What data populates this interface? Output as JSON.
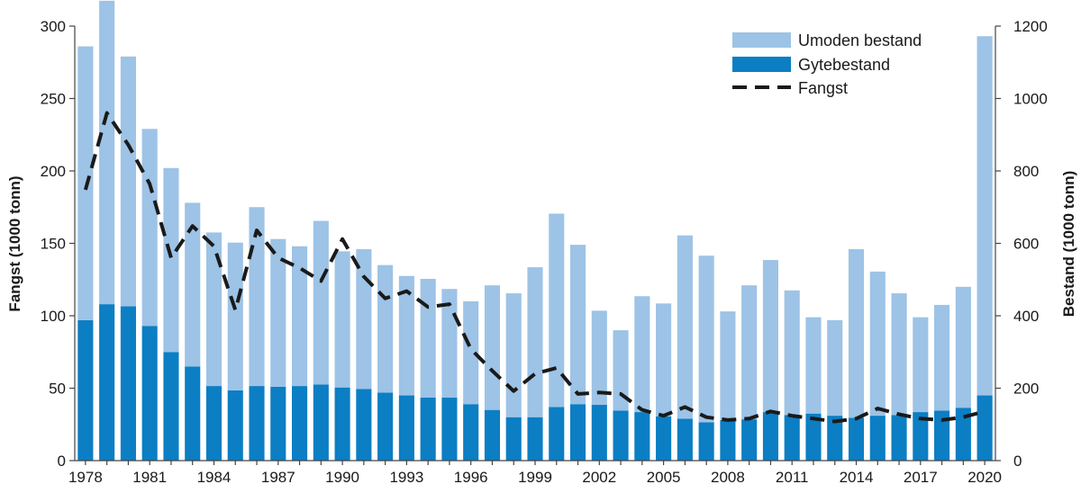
{
  "colors": {
    "umoden": "#9dc3e6",
    "gyte": "#0b7ec4",
    "fangst": "#1a1a1a",
    "axis": "#444444"
  },
  "chart_data": {
    "type": "bar",
    "stacked": true,
    "years": [
      1978,
      1979,
      1980,
      1981,
      1982,
      1983,
      1984,
      1985,
      1986,
      1987,
      1988,
      1989,
      1990,
      1991,
      1992,
      1993,
      1994,
      1995,
      1996,
      1997,
      1998,
      1999,
      2000,
      2001,
      2002,
      2003,
      2004,
      2005,
      2006,
      2007,
      2008,
      2009,
      2010,
      2011,
      2012,
      2013,
      2014,
      2015,
      2016,
      2017,
      2018,
      2019,
      2020
    ],
    "x_tick_labels": [
      "1978",
      "1981",
      "1984",
      "1987",
      "1990",
      "1993",
      "1996",
      "1999",
      "2002",
      "2005",
      "2008",
      "2011",
      "2014",
      "2017",
      "2020"
    ],
    "series": [
      {
        "name": "Gytebestand",
        "axis": "right",
        "values": [
          388,
          432,
          426,
          372,
          300,
          260,
          206,
          194,
          206,
          204,
          206,
          210,
          202,
          198,
          188,
          180,
          174,
          174,
          156,
          140,
          120,
          120,
          148,
          156,
          154,
          138,
          134,
          122,
          116,
          106,
          112,
          114,
          134,
          126,
          130,
          124,
          118,
          124,
          126,
          134,
          138,
          146,
          180
        ]
      },
      {
        "name": "Umoden bestand",
        "axis": "right",
        "values": [
          756,
          838,
          690,
          544,
          508,
          452,
          424,
          408,
          494,
          408,
          386,
          452,
          376,
          386,
          352,
          330,
          328,
          300,
          284,
          344,
          342,
          414,
          534,
          440,
          260,
          222,
          320,
          312,
          506,
          460,
          300,
          370,
          420,
          344,
          266,
          264,
          466,
          398,
          336,
          262,
          292,
          334,
          992
        ]
      },
      {
        "name": "Fangst",
        "axis": "left",
        "type": "line",
        "values": [
          187,
          240,
          218,
          191,
          140,
          162,
          148,
          104,
          159,
          140,
          133,
          124,
          153,
          127,
          112,
          117,
          106,
          108,
          77,
          62,
          48,
          60,
          64,
          46,
          47,
          46,
          35,
          31,
          37,
          30,
          28,
          29,
          34,
          31,
          29,
          27,
          29,
          36,
          32,
          29,
          28,
          30,
          34
        ]
      }
    ],
    "left_axis": {
      "label": "Fangst (1000 tonn)",
      "ylim": [
        0,
        300
      ],
      "ticks": [
        "0",
        "50",
        "100",
        "150",
        "200",
        "250",
        "300"
      ]
    },
    "right_axis": {
      "label": "Bestand (1000 tonn)",
      "ylim": [
        0,
        1200
      ],
      "ticks": [
        "0",
        "200",
        "400",
        "600",
        "800",
        "1000",
        "1200"
      ]
    },
    "legend": [
      "Umoden bestand",
      "Gytebestand",
      "Fangst"
    ],
    "legend_position": "top-right",
    "grid": false
  }
}
